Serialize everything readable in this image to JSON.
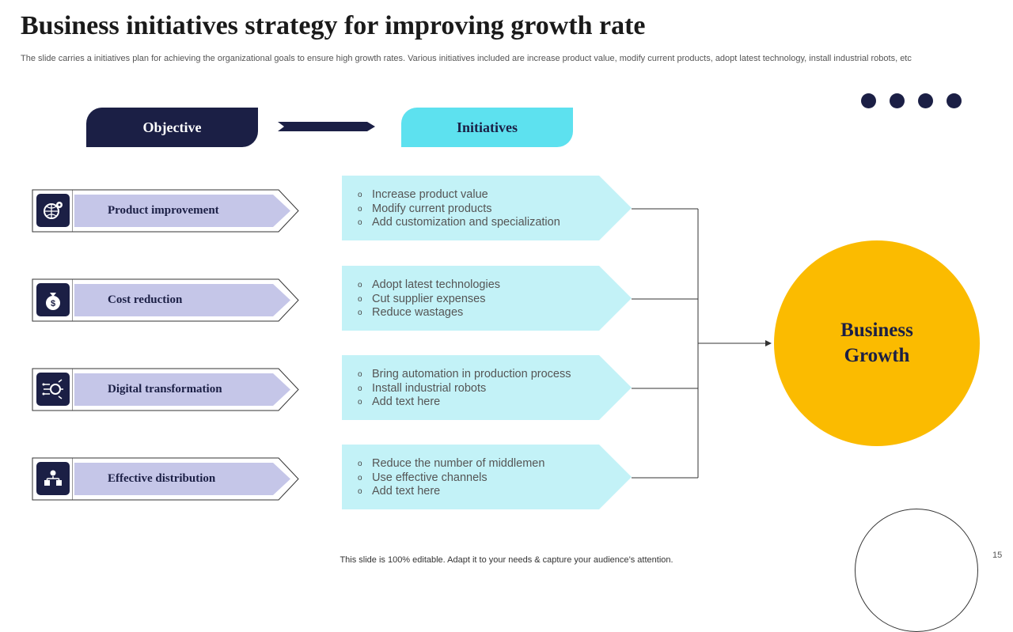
{
  "slide": {
    "title": "Business initiatives strategy for improving growth rate",
    "subtitle": "The slide carries a initiatives plan for achieving the organizational goals to ensure high growth rates. Various initiatives included are increase product value, modify current products, adopt latest technology, install industrial robots, etc",
    "footer": "This slide is 100% editable. Adapt it to your needs & capture your audience’s attention.",
    "slide_number": "15"
  },
  "headers": {
    "objective": "Objective",
    "initiatives": "Initiatives"
  },
  "objectives": [
    {
      "label": "Product  improvement",
      "icon": "gear-globe-icon"
    },
    {
      "label": "Cost reduction",
      "icon": "money-bag-icon"
    },
    {
      "label": "Digital transformation",
      "icon": "digital-network-icon"
    },
    {
      "label": "Effective distribution",
      "icon": "distribution-network-icon"
    }
  ],
  "initiatives": [
    [
      "Increase product value",
      "Modify current products",
      "Add customization and specialization"
    ],
    [
      "Adopt latest technologies",
      "Cut supplier expenses",
      "Reduce wastages"
    ],
    [
      "Bring automation in production process",
      "Install industrial robots",
      "Add text here"
    ],
    [
      "Reduce the number of middlemen",
      "Use effective channels",
      "Add text here"
    ]
  ],
  "result": {
    "line1": "Business",
    "line2": "Growth"
  },
  "bullet_symbol": "o",
  "colors": {
    "navy": "#1b1f45",
    "cyan_header": "#5de1ef",
    "light_cyan": "#c3f2f7",
    "lavender": "#c5c6e8",
    "yellow": "#fbbb00"
  }
}
